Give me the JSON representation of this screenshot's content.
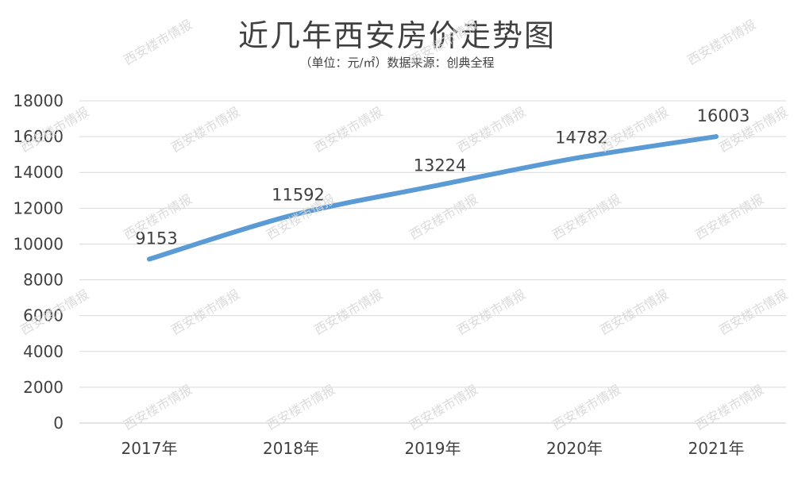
{
  "chart_data": {
    "type": "line",
    "title": "近几年西安房价走势图",
    "subtitle": "（单位：元/㎡）数据来源：创典全程",
    "categories": [
      "2017年",
      "2018年",
      "2019年",
      "2020年",
      "2021年"
    ],
    "series": [
      {
        "values": [
          9153,
          11592,
          13224,
          14782,
          16003
        ],
        "color": "#5b9bd5"
      }
    ],
    "ylim": [
      0,
      18000
    ],
    "yticks": [
      0,
      2000,
      4000,
      6000,
      8000,
      10000,
      12000,
      14000,
      16000,
      18000
    ],
    "grid": true,
    "legend": "none"
  },
  "watermark_text": "西安楼市情报"
}
